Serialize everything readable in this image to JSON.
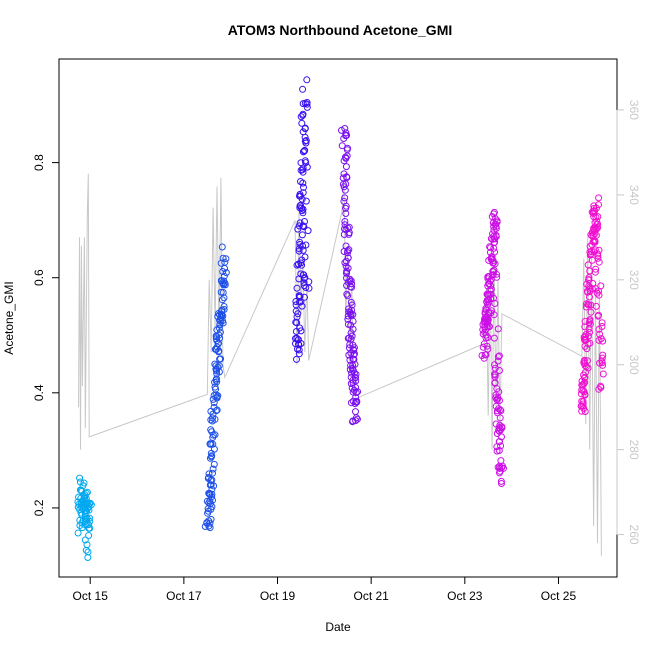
{
  "chart_data": {
    "type": "scatter",
    "title": "ATOM3 Northbound Acetone_GMI",
    "xlabel": "Date",
    "ylabel": "Acetone_GMI",
    "x_ticks": [
      "Oct 15",
      "Oct 17",
      "Oct 19",
      "Oct 21",
      "Oct 23",
      "Oct 25"
    ],
    "x_tick_dates": [
      "2017-10-15",
      "2017-10-17",
      "2017-10-19",
      "2017-10-21",
      "2017-10-23",
      "2017-10-25"
    ],
    "xlim": [
      "2017-10-14 08:00",
      "2017-10-26 06:00"
    ],
    "y_ticks": [
      0.2,
      0.4,
      0.6,
      0.8
    ],
    "ylim": [
      0.08,
      0.98
    ],
    "y2_ticks": [
      260,
      280,
      300,
      320,
      340,
      360
    ],
    "y2lim": [
      250,
      372
    ],
    "grid": false,
    "colors": {
      "series_start": "#00aaee",
      "series_mid": "#2b22ee",
      "series_end": "#ff00cc",
      "line": "#c8c8c8",
      "y2_axis": "#c8c8c8"
    },
    "series": [
      {
        "marker": "open-circle",
        "clusters": [
          {
            "start": "2017-10-14 18:30",
            "end": "2017-10-14 23:50",
            "y_profile": [
              0.17,
              0.2,
              0.22,
              0.24,
              0.21,
              0.19,
              0.23,
              0.18,
              0.22,
              0.2,
              0.16,
              0.21,
              0.115,
              0.23
            ],
            "count": 70,
            "color": "#00a8f0"
          },
          {
            "start": "2017-10-17 12:00",
            "end": "2017-10-17 21:00",
            "y_profile": [
              0.18,
              0.2,
              0.22,
              0.28,
              0.33,
              0.38,
              0.42,
              0.46,
              0.5,
              0.53,
              0.55,
              0.6,
              0.64
            ],
            "count": 140,
            "color": "#1e50e8"
          },
          {
            "start": "2017-10-19 10:00",
            "end": "2017-10-19 15:00",
            "y_profile": [
              0.46,
              0.5,
              0.55,
              0.6,
              0.65,
              0.7,
              0.75,
              0.8,
              0.85,
              0.93,
              0.62,
              0.57
            ],
            "count": 110,
            "color": "#3a10f0"
          },
          {
            "start": "2017-10-20 10:00",
            "end": "2017-10-20 16:00",
            "y_profile": [
              0.86,
              0.8,
              0.7,
              0.65,
              0.6,
              0.55,
              0.5,
              0.46,
              0.43,
              0.4,
              0.35
            ],
            "count": 130,
            "color": "#7a10f0"
          },
          {
            "start": "2017-10-23 10:00",
            "end": "2017-10-23 19:00",
            "y_profile": [
              0.48,
              0.5,
              0.52,
              0.55,
              0.57,
              0.6,
              0.64,
              0.68,
              0.72,
              0.45,
              0.4,
              0.35,
              0.3,
              0.25
            ],
            "count": 170,
            "color": "#cc10e6"
          },
          {
            "start": "2017-10-25 12:00",
            "end": "2017-10-25 22:00",
            "y_profile": [
              0.38,
              0.4,
              0.45,
              0.5,
              0.55,
              0.6,
              0.65,
              0.7,
              0.72,
              0.62,
              0.5,
              0.42
            ],
            "count": 150,
            "color": "#f010d0"
          }
        ]
      },
      {
        "type": "line",
        "axis": "right",
        "points": [
          [
            "2017-10-14 18:00",
            290
          ],
          [
            "2017-10-14 18:30",
            330
          ],
          [
            "2017-10-14 19:00",
            280
          ],
          [
            "2017-10-14 19:30",
            328
          ],
          [
            "2017-10-14 20:00",
            295
          ],
          [
            "2017-10-14 21:00",
            330
          ],
          [
            "2017-10-14 21:30",
            285
          ],
          [
            "2017-10-14 22:30",
            335
          ],
          [
            "2017-10-14 23:00",
            345
          ],
          [
            "2017-10-14 23:30",
            283
          ],
          [
            "2017-10-17 12:00",
            293
          ],
          [
            "2017-10-17 13:00",
            320
          ],
          [
            "2017-10-17 14:00",
            303
          ],
          [
            "2017-10-17 15:00",
            337
          ],
          [
            "2017-10-17 16:00",
            308
          ],
          [
            "2017-10-17 17:00",
            342
          ],
          [
            "2017-10-17 18:00",
            306
          ],
          [
            "2017-10-17 19:00",
            344
          ],
          [
            "2017-10-17 20:00",
            300
          ],
          [
            "2017-10-17 21:00",
            297
          ],
          [
            "2017-10-19 09:00",
            334
          ],
          [
            "2017-10-19 10:00",
            300
          ],
          [
            "2017-10-19 11:00",
            336
          ],
          [
            "2017-10-19 12:00",
            312
          ],
          [
            "2017-10-19 13:00",
            325
          ],
          [
            "2017-10-19 14:00",
            303
          ],
          [
            "2017-10-19 15:00",
            320
          ],
          [
            "2017-10-19 16:00",
            301
          ],
          [
            "2017-10-20 09:00",
            336
          ],
          [
            "2017-10-20 10:00",
            345
          ],
          [
            "2017-10-20 11:00",
            310
          ],
          [
            "2017-10-20 12:00",
            328
          ],
          [
            "2017-10-20 13:00",
            300
          ],
          [
            "2017-10-20 14:00",
            320
          ],
          [
            "2017-10-20 15:00",
            298
          ],
          [
            "2017-10-20 16:00",
            292
          ],
          [
            "2017-10-23 10:00",
            305
          ],
          [
            "2017-10-23 11:00",
            318
          ],
          [
            "2017-10-23 12:00",
            288
          ],
          [
            "2017-10-23 13:00",
            322
          ],
          [
            "2017-10-23 14:00",
            280
          ],
          [
            "2017-10-23 15:00",
            326
          ],
          [
            "2017-10-23 16:00",
            290
          ],
          [
            "2017-10-23 17:00",
            320
          ],
          [
            "2017-10-23 18:00",
            285
          ],
          [
            "2017-10-23 19:00",
            312
          ],
          [
            "2017-10-25 12:00",
            302
          ],
          [
            "2017-10-25 13:00",
            325
          ],
          [
            "2017-10-25 14:00",
            286
          ],
          [
            "2017-10-25 15:00",
            330
          ],
          [
            "2017-10-25 16:00",
            280
          ],
          [
            "2017-10-25 17:00",
            328
          ],
          [
            "2017-10-25 18:00",
            262
          ],
          [
            "2017-10-25 19:00",
            318
          ],
          [
            "2017-10-25 20:00",
            258
          ],
          [
            "2017-10-25 21:00",
            320
          ],
          [
            "2017-10-25 22:00",
            255
          ]
        ]
      }
    ]
  }
}
